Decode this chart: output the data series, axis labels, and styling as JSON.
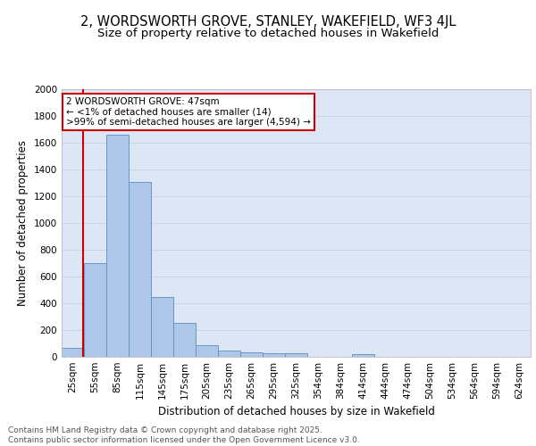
{
  "title_line1": "2, WORDSWORTH GROVE, STANLEY, WAKEFIELD, WF3 4JL",
  "title_line2": "Size of property relative to detached houses in Wakefield",
  "xlabel": "Distribution of detached houses by size in Wakefield",
  "ylabel": "Number of detached properties",
  "categories": [
    "25sqm",
    "55sqm",
    "85sqm",
    "115sqm",
    "145sqm",
    "175sqm",
    "205sqm",
    "235sqm",
    "265sqm",
    "295sqm",
    "325sqm",
    "354sqm",
    "384sqm",
    "414sqm",
    "444sqm",
    "474sqm",
    "504sqm",
    "534sqm",
    "564sqm",
    "594sqm",
    "624sqm"
  ],
  "values": [
    65,
    700,
    1660,
    1310,
    445,
    255,
    85,
    50,
    35,
    25,
    25,
    0,
    0,
    20,
    0,
    0,
    0,
    0,
    0,
    0,
    0
  ],
  "bar_color": "#aec6e8",
  "bar_edge_color": "#5a8fc0",
  "grid_color": "#c8d4e8",
  "background_color": "#dce6f5",
  "annotation_box_color": "#cc0000",
  "annotation_line1": "2 WORDSWORTH GROVE: 47sqm",
  "annotation_line2": "← <1% of detached houses are smaller (14)",
  "annotation_line3": ">99% of semi-detached houses are larger (4,594) →",
  "ylim": [
    0,
    2000
  ],
  "yticks": [
    0,
    200,
    400,
    600,
    800,
    1000,
    1200,
    1400,
    1600,
    1800,
    2000
  ],
  "footer_line1": "Contains HM Land Registry data © Crown copyright and database right 2025.",
  "footer_line2": "Contains public sector information licensed under the Open Government Licence v3.0.",
  "title_fontsize": 10.5,
  "subtitle_fontsize": 9.5,
  "axis_label_fontsize": 8.5,
  "tick_fontsize": 7.5,
  "annotation_fontsize": 7.5,
  "footer_fontsize": 6.5,
  "red_line_x": 0.47
}
